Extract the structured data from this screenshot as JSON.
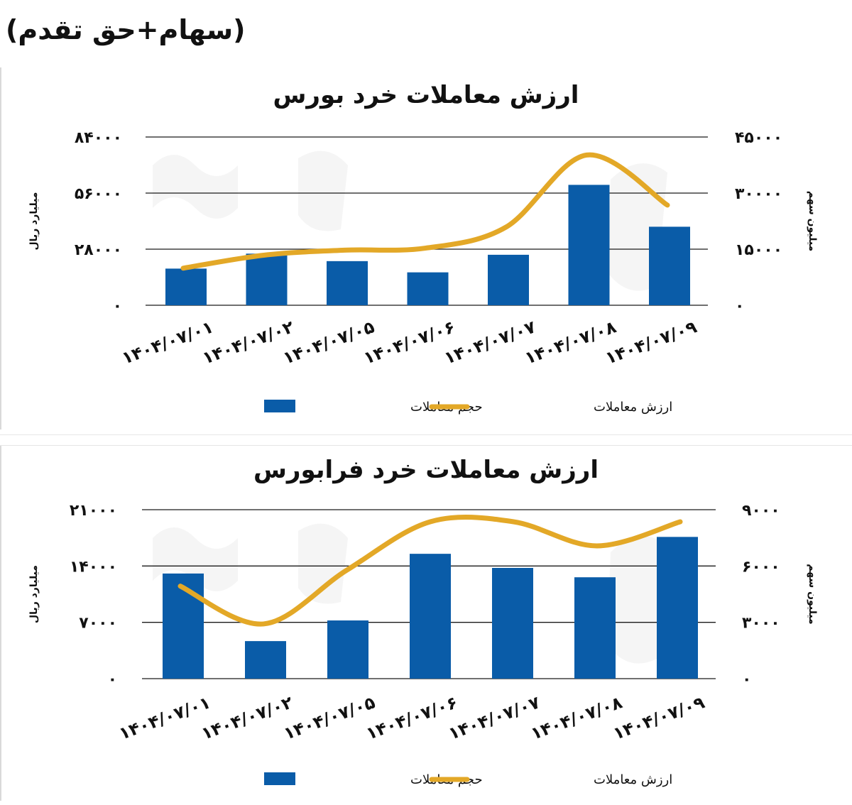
{
  "header_note": "(سهام+حق تقدم)",
  "chart_data": [
    {
      "type": "bar",
      "title": "ارزش معاملات خرد بورس",
      "categories": [
        "۱۴۰۴/۰۷/۰۱",
        "۱۴۰۴/۰۷/۰۲",
        "۱۴۰۴/۰۷/۰۵",
        "۱۴۰۴/۰۷/۰۶",
        "۱۴۰۴/۰۷/۰۷",
        "۱۴۰۴/۰۷/۰۸",
        "۱۴۰۴/۰۷/۰۹"
      ],
      "ylabel_left": "میلیارد ریال",
      "ylabel_right": "میلیون سهم",
      "left_ticks": [
        "۰",
        "۲۸۰۰۰",
        "۵۶۰۰۰",
        "۸۴۰۰۰"
      ],
      "right_ticks": [
        "۰",
        "۱۵۰۰۰",
        "۳۰۰۰۰",
        "۴۵۰۰۰"
      ],
      "ylim_left": [
        0,
        84000
      ],
      "ylim_right": [
        0,
        45000
      ],
      "series": [
        {
          "name": "حجم معاملات",
          "kind": "bar",
          "axis": "right",
          "color": "#0a5ca8",
          "values": [
            9800,
            13800,
            11800,
            8800,
            13500,
            32200,
            21000
          ]
        },
        {
          "name": "ارزش معاملات",
          "kind": "line",
          "axis": "left",
          "color": "#e3a827",
          "values": [
            18500,
            25000,
            27500,
            28500,
            39000,
            75000,
            50000
          ]
        }
      ],
      "legend": "bottom",
      "grid": true
    },
    {
      "type": "bar",
      "title": "ارزش معاملات خرد فرابورس",
      "categories": [
        "۱۴۰۴/۰۷/۰۱",
        "۱۴۰۴/۰۷/۰۲",
        "۱۴۰۴/۰۷/۰۵",
        "۱۴۰۴/۰۷/۰۶",
        "۱۴۰۴/۰۷/۰۷",
        "۱۴۰۴/۰۷/۰۸",
        "۱۴۰۴/۰۷/۰۹"
      ],
      "ylabel_left": "میلیارد ریال",
      "ylabel_right": "میلیون سهم",
      "left_ticks": [
        "۰",
        "۷۰۰۰",
        "۱۴۰۰۰",
        "۲۱۰۰۰"
      ],
      "right_ticks": [
        "۰",
        "۳۰۰۰",
        "۶۰۰۰",
        "۹۰۰۰"
      ],
      "ylim_left": [
        0,
        21000
      ],
      "ylim_right": [
        0,
        9000
      ],
      "series": [
        {
          "name": "حجم معاملات",
          "kind": "bar",
          "axis": "right",
          "color": "#0a5ca8",
          "values": [
            5600,
            2000,
            3100,
            6650,
            5900,
            5400,
            7550
          ]
        },
        {
          "name": "ارزش معاملات",
          "kind": "line",
          "axis": "left",
          "color": "#e3a827",
          "values": [
            11500,
            6800,
            13500,
            19500,
            19500,
            16500,
            19500
          ]
        }
      ],
      "legend": "bottom",
      "grid": true
    }
  ]
}
